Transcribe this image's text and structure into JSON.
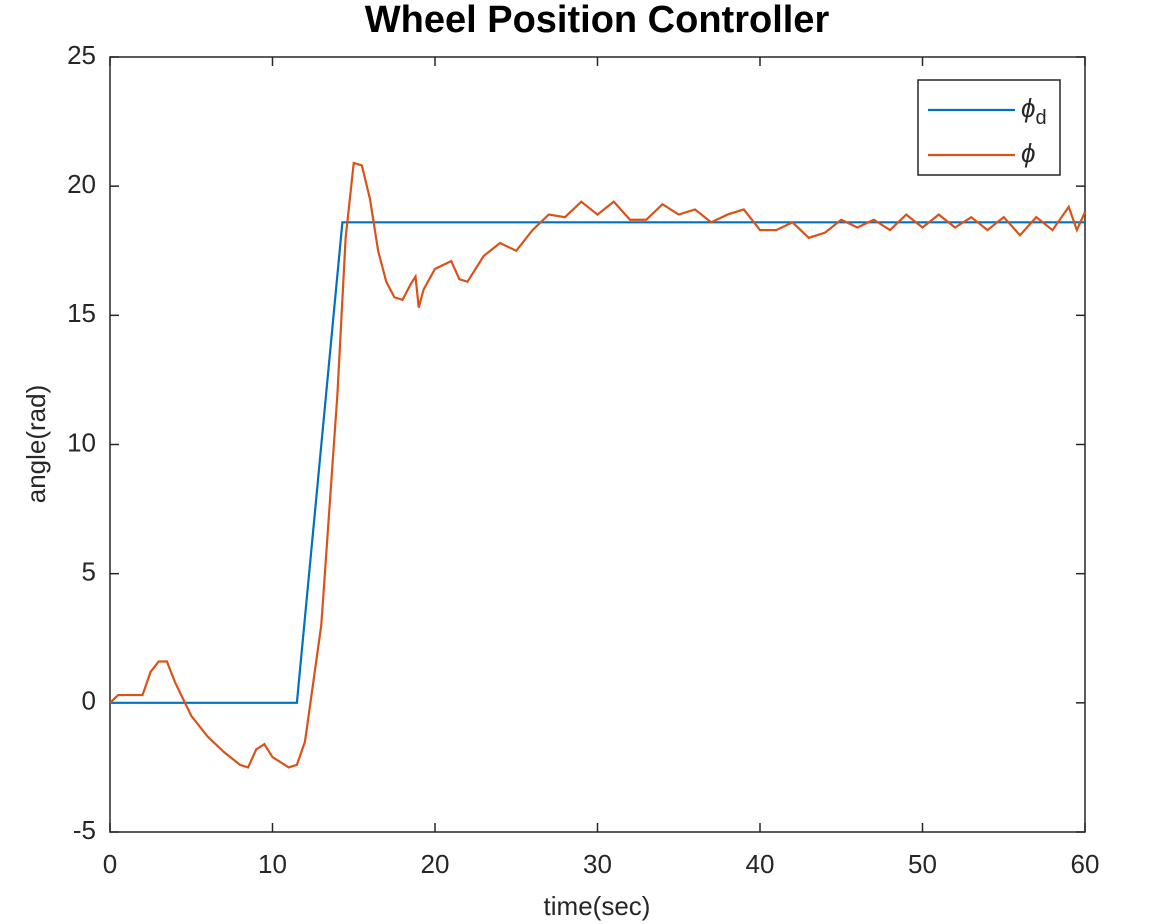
{
  "chart_data": {
    "type": "line",
    "title": "Wheel Position Controller",
    "x_label": "time(sec)",
    "y_label": "angle(rad)",
    "xlim": [
      0,
      60
    ],
    "xticks": [
      0,
      10,
      20,
      30,
      40,
      50,
      60
    ],
    "ylim": [
      -5,
      25
    ],
    "yticks": [
      -5,
      0,
      5,
      10,
      15,
      20,
      25
    ],
    "legend": "upper-right",
    "series": [
      {
        "name": "ϕd",
        "color": "#0072bd",
        "x": [
          0,
          11.5,
          14.3,
          60
        ],
        "values": [
          0,
          0,
          18.6,
          18.6
        ]
      },
      {
        "name": "ϕ",
        "color": "#d95319",
        "x": [
          0,
          0.5,
          1,
          2,
          2.5,
          3,
          3.5,
          4,
          5,
          6,
          7,
          8,
          8.5,
          9,
          9.5,
          10,
          11,
          11.5,
          12,
          13,
          14,
          14.5,
          15,
          15.5,
          16,
          16.5,
          17,
          17.5,
          18,
          18.5,
          18.8,
          19,
          19.3,
          20,
          21,
          21.5,
          22,
          23,
          24,
          25,
          26,
          27,
          28,
          29,
          30,
          31,
          32,
          33,
          34,
          35,
          36,
          37,
          38,
          39,
          40,
          41,
          42,
          43,
          44,
          45,
          46,
          47,
          48,
          49,
          50,
          51,
          52,
          53,
          54,
          55,
          56,
          57,
          58,
          59,
          59.5,
          60
        ],
        "values": [
          0,
          0.3,
          0.3,
          0.3,
          1.2,
          1.6,
          1.6,
          0.8,
          -0.5,
          -1.3,
          -1.9,
          -2.4,
          -2.5,
          -1.8,
          -1.6,
          -2.1,
          -2.5,
          -2.4,
          -1.5,
          3,
          12,
          18,
          20.9,
          20.8,
          19.5,
          17.5,
          16.3,
          15.7,
          15.6,
          16.2,
          16.5,
          15.3,
          16,
          16.8,
          17.1,
          16.4,
          16.3,
          17.3,
          17.8,
          17.5,
          18.3,
          18.9,
          18.8,
          19.4,
          18.9,
          19.4,
          18.7,
          18.7,
          19.3,
          18.9,
          19.1,
          18.6,
          18.9,
          19.1,
          18.3,
          18.3,
          18.6,
          18,
          18.2,
          18.7,
          18.4,
          18.7,
          18.3,
          18.9,
          18.4,
          18.9,
          18.4,
          18.8,
          18.3,
          18.8,
          18.1,
          18.8,
          18.3,
          19.2,
          18.3,
          19
        ]
      }
    ]
  }
}
